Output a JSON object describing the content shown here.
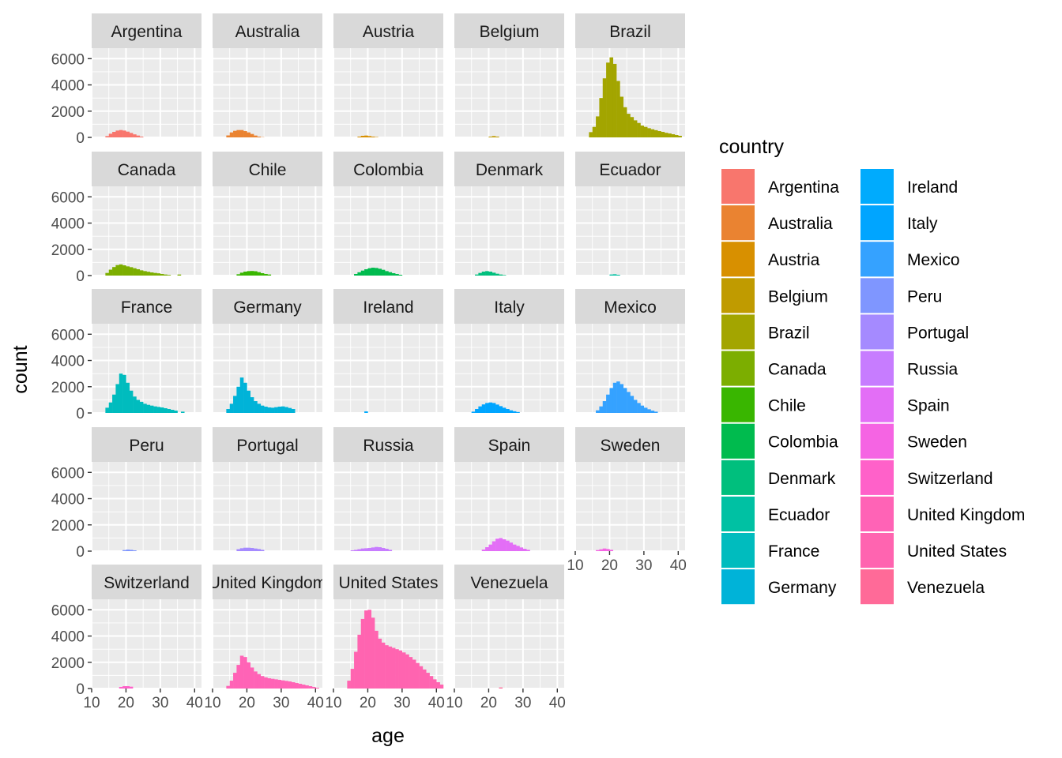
{
  "chart_data": {
    "type": "bar",
    "facet": "country",
    "xlabel": "age",
    "ylabel": "count",
    "xlim": [
      10,
      42
    ],
    "ylim": [
      0,
      6800
    ],
    "x_ticks": [
      10,
      20,
      30,
      40
    ],
    "y_ticks": [
      0,
      2000,
      4000,
      6000
    ],
    "bin_start": 12,
    "bin_width": 1,
    "grid": true,
    "legend": {
      "title": "country",
      "position": "right",
      "columns": 2
    },
    "series": [
      {
        "name": "Argentina",
        "color": "#F8766D",
        "values": [
          0,
          0,
          100,
          280,
          420,
          520,
          560,
          520,
          440,
          340,
          230,
          140,
          60,
          0,
          0,
          0,
          0,
          0,
          0,
          0,
          0,
          0,
          0,
          0,
          0,
          0,
          0,
          0,
          0,
          0
        ]
      },
      {
        "name": "Australia",
        "color": "#EA8331",
        "values": [
          0,
          0,
          150,
          380,
          500,
          560,
          560,
          480,
          380,
          260,
          140,
          60,
          20,
          0,
          0,
          0,
          0,
          0,
          0,
          0,
          0,
          0,
          0,
          0,
          0,
          0,
          0,
          0,
          0,
          0
        ]
      },
      {
        "name": "Austria",
        "color": "#D89000",
        "values": [
          0,
          0,
          0,
          0,
          0,
          60,
          120,
          140,
          100,
          60,
          30,
          0,
          0,
          0,
          0,
          0,
          0,
          0,
          0,
          0,
          0,
          0,
          0,
          0,
          0,
          0,
          0,
          0,
          0,
          0
        ]
      },
      {
        "name": "Belgium",
        "color": "#C09B00",
        "values": [
          0,
          0,
          0,
          0,
          0,
          0,
          0,
          0,
          60,
          100,
          60,
          0,
          0,
          0,
          0,
          0,
          0,
          0,
          0,
          0,
          0,
          0,
          0,
          0,
          0,
          0,
          0,
          0,
          0,
          0
        ]
      },
      {
        "name": "Brazil",
        "color": "#A3A500",
        "values": [
          0,
          0,
          400,
          800,
          1600,
          3000,
          4500,
          5700,
          6100,
          5600,
          4300,
          3100,
          2300,
          1800,
          1550,
          1300,
          1100,
          900,
          800,
          700,
          620,
          550,
          480,
          420,
          350,
          300,
          240,
          180,
          120,
          0
        ]
      },
      {
        "name": "Canada",
        "color": "#7CAE00",
        "values": [
          0,
          0,
          200,
          450,
          650,
          800,
          850,
          780,
          700,
          640,
          560,
          480,
          400,
          340,
          290,
          240,
          200,
          170,
          120,
          80,
          50,
          0,
          0,
          80,
          0,
          0,
          0,
          0,
          0,
          0
        ]
      },
      {
        "name": "Chile",
        "color": "#39B600",
        "values": [
          0,
          0,
          0,
          0,
          0,
          100,
          220,
          300,
          340,
          350,
          330,
          260,
          180,
          120,
          80,
          0,
          0,
          0,
          0,
          0,
          0,
          0,
          0,
          0,
          0,
          0,
          0,
          0,
          0,
          0
        ]
      },
      {
        "name": "Colombia",
        "color": "#00BB4E",
        "values": [
          0,
          0,
          0,
          0,
          120,
          250,
          380,
          480,
          560,
          600,
          580,
          520,
          440,
          340,
          260,
          180,
          120,
          60,
          0,
          0,
          0,
          0,
          0,
          0,
          0,
          0,
          0,
          0,
          0,
          0
        ]
      },
      {
        "name": "Denmark",
        "color": "#00BF7D",
        "values": [
          0,
          0,
          0,
          0,
          80,
          200,
          300,
          340,
          300,
          220,
          140,
          80,
          40,
          0,
          0,
          0,
          0,
          0,
          0,
          0,
          0,
          0,
          0,
          0,
          0,
          0,
          0,
          0,
          0,
          0
        ]
      },
      {
        "name": "Ecuador",
        "color": "#00C1A3",
        "values": [
          0,
          0,
          0,
          0,
          0,
          0,
          0,
          0,
          80,
          100,
          60,
          0,
          0,
          0,
          0,
          0,
          0,
          0,
          0,
          0,
          0,
          0,
          0,
          0,
          0,
          0,
          0,
          0,
          0,
          0
        ]
      },
      {
        "name": "France",
        "color": "#00BCBE",
        "values": [
          0,
          0,
          400,
          800,
          1400,
          2200,
          3000,
          2900,
          2300,
          1700,
          1250,
          1000,
          850,
          700,
          620,
          560,
          500,
          460,
          420,
          360,
          300,
          240,
          180,
          0,
          100,
          0,
          0,
          0,
          0,
          0
        ]
      },
      {
        "name": "Germany",
        "color": "#00B3D8",
        "values": [
          0,
          0,
          300,
          700,
          1300,
          2000,
          2700,
          2300,
          1700,
          1200,
          900,
          700,
          560,
          480,
          420,
          400,
          440,
          480,
          500,
          450,
          380,
          300,
          0,
          0,
          0,
          0,
          0,
          0,
          0,
          0
        ]
      },
      {
        "name": "Ireland",
        "color": "#00ABFD",
        "values": [
          0,
          0,
          0,
          0,
          0,
          0,
          0,
          120,
          0,
          0,
          0,
          0,
          0,
          0,
          0,
          0,
          0,
          0,
          0,
          0,
          0,
          0,
          0,
          0,
          0,
          0,
          0,
          0,
          0,
          0
        ]
      },
      {
        "name": "Italy",
        "color": "#00A5FF",
        "values": [
          0,
          0,
          0,
          100,
          300,
          500,
          650,
          760,
          800,
          760,
          640,
          520,
          400,
          300,
          200,
          130,
          70,
          0,
          0,
          0,
          0,
          0,
          0,
          0,
          0,
          0,
          0,
          0,
          0,
          0
        ]
      },
      {
        "name": "Mexico",
        "color": "#35A2FF",
        "values": [
          0,
          0,
          0,
          0,
          200,
          500,
          900,
          1400,
          1900,
          2300,
          2400,
          2200,
          1900,
          1600,
          1300,
          1000,
          760,
          560,
          400,
          280,
          180,
          100,
          0,
          0,
          0,
          0,
          0,
          0,
          0,
          0
        ]
      },
      {
        "name": "Peru",
        "color": "#7F96FF",
        "values": [
          0,
          0,
          0,
          0,
          0,
          0,
          0,
          80,
          120,
          100,
          60,
          0,
          0,
          0,
          0,
          0,
          0,
          0,
          0,
          0,
          0,
          0,
          0,
          0,
          0,
          0,
          0,
          0,
          0,
          0
        ]
      },
      {
        "name": "Portugal",
        "color": "#A58AFF",
        "values": [
          0,
          0,
          0,
          0,
          0,
          150,
          220,
          260,
          260,
          240,
          200,
          160,
          100,
          0,
          0,
          0,
          0,
          0,
          0,
          0,
          0,
          0,
          0,
          0,
          0,
          0,
          0,
          0,
          0,
          0
        ]
      },
      {
        "name": "Russia",
        "color": "#C77CFF",
        "values": [
          0,
          0,
          0,
          60,
          100,
          150,
          200,
          220,
          240,
          280,
          320,
          300,
          240,
          180,
          100,
          0,
          0,
          0,
          0,
          0,
          0,
          0,
          0,
          0,
          0,
          0,
          0,
          0,
          0,
          0
        ]
      },
      {
        "name": "Spain",
        "color": "#E36EF6",
        "values": [
          0,
          0,
          0,
          0,
          0,
          0,
          120,
          300,
          500,
          750,
          950,
          1000,
          900,
          800,
          650,
          500,
          400,
          280,
          180,
          100,
          0,
          0,
          0,
          0,
          0,
          0,
          0,
          0,
          0,
          0
        ]
      },
      {
        "name": "Sweden",
        "color": "#F564E3",
        "values": [
          0,
          0,
          0,
          0,
          80,
          140,
          200,
          160,
          100,
          0,
          0,
          0,
          0,
          0,
          0,
          0,
          0,
          0,
          0,
          0,
          0,
          0,
          0,
          0,
          0,
          0,
          0,
          0,
          0,
          0
        ]
      },
      {
        "name": "Switzerland",
        "color": "#FF61C9",
        "values": [
          0,
          0,
          0,
          0,
          0,
          0,
          120,
          180,
          180,
          140,
          0,
          0,
          0,
          0,
          0,
          0,
          0,
          0,
          0,
          0,
          0,
          0,
          0,
          0,
          0,
          0,
          0,
          0,
          0,
          0
        ]
      },
      {
        "name": "United Kingdom",
        "color": "#FF63B6",
        "values": [
          0,
          0,
          200,
          600,
          1200,
          1800,
          2500,
          2400,
          2000,
          1600,
          1300,
          1100,
          950,
          850,
          780,
          740,
          700,
          660,
          620,
          580,
          540,
          480,
          420,
          360,
          300,
          240,
          180,
          120,
          60,
          0
        ]
      },
      {
        "name": "United States",
        "color": "#FF64B0",
        "values": [
          0,
          0,
          600,
          1500,
          2800,
          4100,
          5300,
          5950,
          6000,
          5400,
          4400,
          3800,
          3500,
          3300,
          3200,
          3100,
          3000,
          2900,
          2750,
          2600,
          2400,
          2200,
          1950,
          1700,
          1450,
          1200,
          950,
          700,
          480,
          300
        ]
      },
      {
        "name": "Venezuela",
        "color": "#FF6A98",
        "values": [
          0,
          0,
          0,
          0,
          0,
          0,
          0,
          0,
          0,
          0,
          0,
          80,
          0,
          0,
          0,
          0,
          0,
          0,
          0,
          0,
          0,
          0,
          0,
          0,
          0,
          0,
          0,
          0,
          0,
          0
        ]
      }
    ]
  }
}
